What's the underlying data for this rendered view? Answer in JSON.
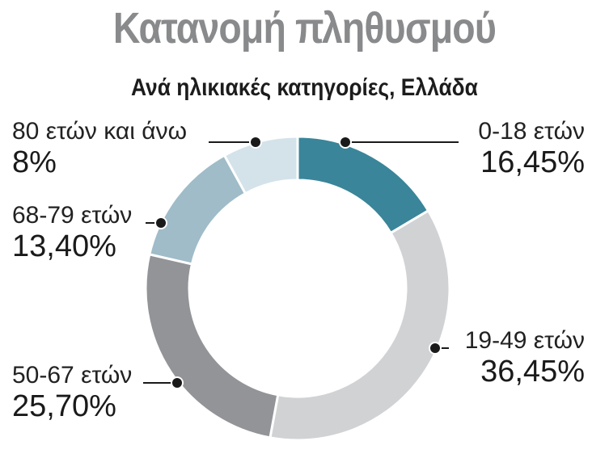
{
  "title": "Κατανομή πληθυσμού",
  "subtitle": "Ανά ηλικιακές κατηγορίες, Ελλάδα",
  "chart_data": {
    "type": "pie",
    "variant": "donut",
    "title": "Κατανομή πληθυσμού",
    "subtitle": "Ανά ηλικιακές κατηγορίες, Ελλάδα",
    "categories": [
      "0-18 ετών",
      "19-49 ετών",
      "50-67 ετών",
      "68-79 ετών",
      "80 ετών και άνω"
    ],
    "values": [
      16.45,
      36.45,
      25.7,
      13.4,
      8
    ],
    "value_labels": [
      "16,45%",
      "36,45%",
      "25,70%",
      "13,40%",
      "8%"
    ],
    "colors": [
      "#3a8599",
      "#d1d2d4",
      "#939498",
      "#9fbcc8",
      "#d4e2ea"
    ],
    "start_angle": "12 o'clock, clockwise",
    "legend": "none (direct labels with leader lines)"
  },
  "labels": [
    {
      "cat": "0-18 ετών",
      "val": "16,45%"
    },
    {
      "cat": "19-49 ετών",
      "val": "36,45%"
    },
    {
      "cat": "50-67 ετών",
      "val": "25,70%"
    },
    {
      "cat": "68-79 ετών",
      "val": "13,40%"
    },
    {
      "cat": "80 ετών και άνω",
      "val": "8%"
    }
  ]
}
